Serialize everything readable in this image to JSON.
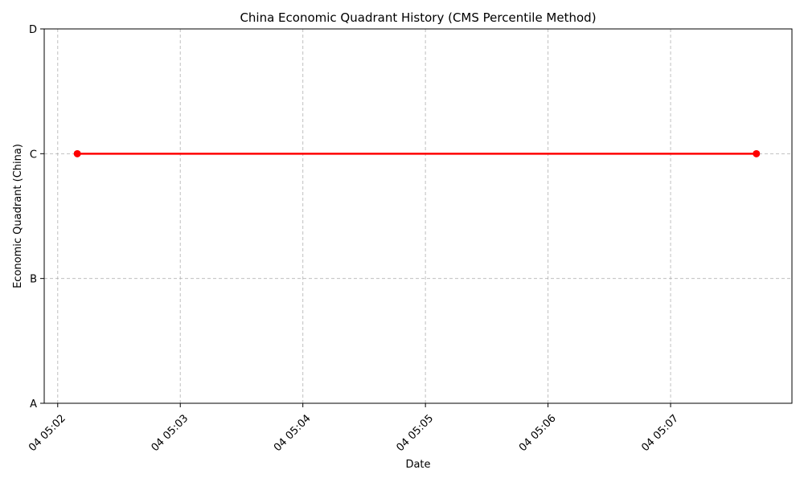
{
  "chart_data": {
    "type": "line",
    "title": "China Economic Quadrant History (CMS Percentile Method)",
    "xlabel": "Date",
    "ylabel": "Economic Quadrant (China)",
    "x_tick_labels": [
      "04 05:02",
      "04 05:03",
      "04 05:04",
      "04 05:05",
      "04 05:06",
      "04 05:07"
    ],
    "x_tick_minutes": [
      2,
      3,
      4,
      5,
      6,
      7
    ],
    "xlim_minutes": [
      1.89,
      7.99
    ],
    "y_categories": [
      "A",
      "B",
      "C",
      "D"
    ],
    "ylim": [
      1,
      4
    ],
    "grid": true,
    "series": [
      {
        "color": "#ff0000",
        "marker": "circle",
        "x_minutes": [
          2.16,
          7.7
        ],
        "y": [
          "C",
          "C"
        ]
      }
    ]
  }
}
